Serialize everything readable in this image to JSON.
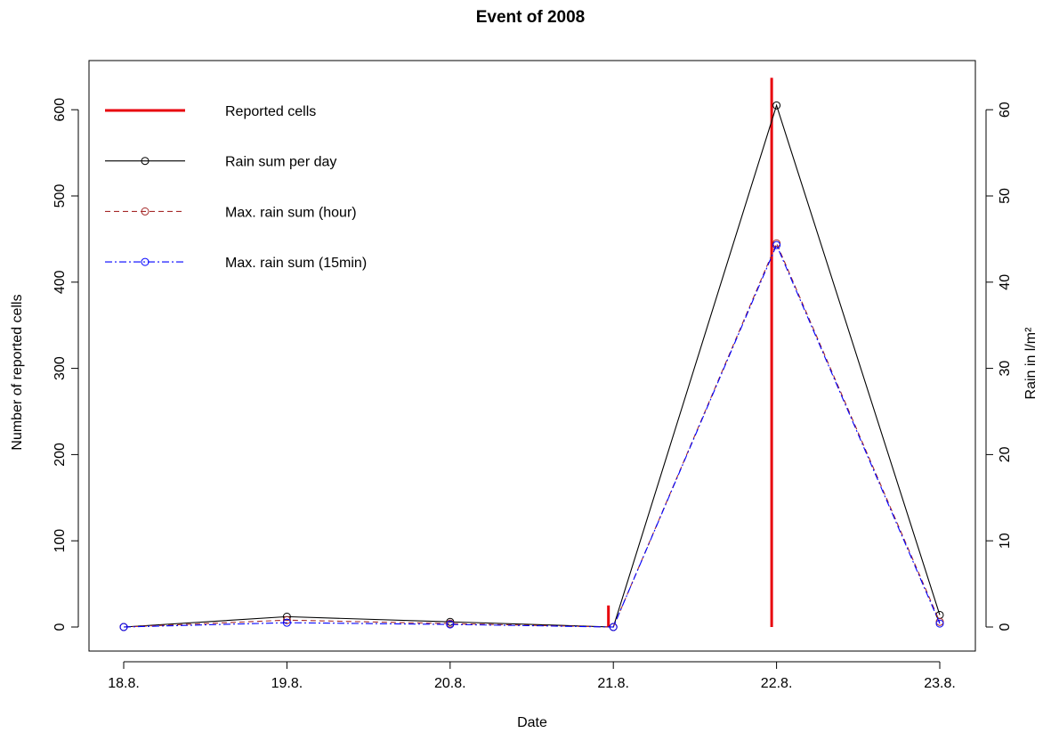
{
  "chart_data": {
    "type": "line",
    "title": "Event of 2008",
    "xlabel": "Date",
    "ylabel_left": "Number of reported cells",
    "ylabel_right": "Rain in l/m²",
    "categories": [
      "18.8.",
      "19.8.",
      "20.8.",
      "21.8.",
      "22.8.",
      "23.8."
    ],
    "xlim": [
      0,
      5
    ],
    "ylim_left": [
      0,
      600
    ],
    "ylim_right": [
      0,
      60
    ],
    "left_ticks": [
      0,
      100,
      200,
      300,
      400,
      500,
      600
    ],
    "right_ticks": [
      0,
      10,
      20,
      30,
      40,
      50,
      60
    ],
    "grid": false,
    "legend_position": "top-left",
    "bars": {
      "name": "Reported cells",
      "color": "#e8000b",
      "axis": "left",
      "points": [
        {
          "x": 2.97,
          "value": 25
        },
        {
          "x": 3.97,
          "value": 637
        }
      ]
    },
    "series": [
      {
        "name": "Rain sum per day",
        "color": "#000000",
        "style": "solid",
        "axis": "right",
        "values": [
          0,
          1.2,
          0.6,
          0,
          60.5,
          1.4
        ]
      },
      {
        "name": "Max. rain sum (hour)",
        "color": "#a52a2a",
        "style": "dashed",
        "axis": "right",
        "values": [
          0,
          0.8,
          0.4,
          0,
          44.5,
          0.6
        ]
      },
      {
        "name": "Max. rain sum (15min)",
        "color": "#0000ff",
        "style": "dashdot",
        "axis": "right",
        "values": [
          0,
          0.5,
          0.3,
          0,
          44.3,
          0.4
        ]
      }
    ],
    "legend": [
      {
        "label": "Reported cells",
        "type": "bar-line",
        "color": "#e8000b"
      },
      {
        "label": "Rain sum per day",
        "type": "solid",
        "color": "#000000"
      },
      {
        "label": "Max. rain sum (hour)",
        "type": "dashed",
        "color": "#a52a2a"
      },
      {
        "label": "Max. rain sum (15min)",
        "type": "dashdot",
        "color": "#0000ff"
      }
    ]
  }
}
